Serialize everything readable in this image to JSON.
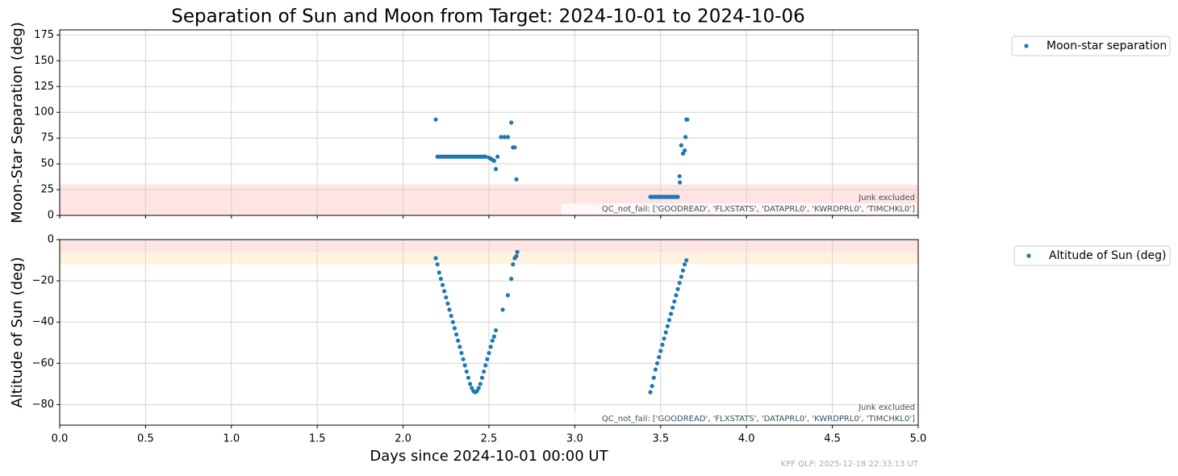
{
  "title": "Separation of Sun and Moon from Target: 2024-10-01 to 2024-10-06",
  "footer": "KPF QLP: 2025-12-18 22:33:13 UT",
  "chart_data": [
    {
      "type": "scatter",
      "ylabel": "Moon-Star Separation (deg)",
      "xlim": [
        0,
        5
      ],
      "ylim": [
        0,
        180
      ],
      "yticks": [
        0,
        25,
        50,
        75,
        100,
        125,
        150,
        175
      ],
      "grid": true,
      "legend": "outside-right",
      "bands": [
        {
          "range": [
            0,
            30
          ],
          "color": "#ffe4e4"
        }
      ],
      "annotations": [
        "Junk excluded",
        "QC_not_fail: ['GOODREAD', 'FLXSTATS', 'DATAPRL0', 'KWRDPRL0', 'TIMCHKL0']"
      ],
      "series": [
        {
          "name": "Moon-star separation",
          "color": "#1f77b4",
          "x": [
            2.19,
            2.2,
            2.21,
            2.22,
            2.23,
            2.24,
            2.25,
            2.26,
            2.27,
            2.28,
            2.29,
            2.3,
            2.31,
            2.32,
            2.33,
            2.34,
            2.35,
            2.36,
            2.37,
            2.38,
            2.39,
            2.4,
            2.41,
            2.42,
            2.43,
            2.44,
            2.45,
            2.46,
            2.47,
            2.48,
            2.5,
            2.51,
            2.52,
            2.53,
            2.54,
            2.55,
            2.57,
            2.59,
            2.61,
            2.63,
            2.64,
            2.65,
            2.66,
            3.44,
            3.45,
            3.46,
            3.47,
            3.48,
            3.49,
            3.5,
            3.51,
            3.52,
            3.53,
            3.54,
            3.55,
            3.56,
            3.57,
            3.58,
            3.59,
            3.6,
            3.61,
            3.612,
            3.62,
            3.63,
            3.64,
            3.645,
            3.65,
            3.655
          ],
          "values": [
            93,
            57,
            57,
            57,
            57,
            57,
            57,
            57,
            57,
            57,
            57,
            57,
            57,
            57,
            57,
            57,
            57,
            57,
            57,
            57,
            57,
            57,
            57,
            57,
            57,
            57,
            57,
            57,
            57,
            57,
            56,
            55,
            54,
            53,
            45,
            57,
            76,
            76,
            76,
            90,
            66,
            66,
            35,
            18,
            18,
            18,
            18,
            18,
            18,
            18,
            18,
            18,
            18,
            18,
            18,
            18,
            18,
            18,
            18,
            18,
            38,
            32,
            68,
            60,
            63,
            76,
            93,
            93
          ]
        }
      ]
    },
    {
      "type": "scatter",
      "ylabel": "Altitude of Sun (deg)",
      "xlabel": "Days since 2024-10-01 00:00 UT",
      "xlim": [
        0,
        5
      ],
      "ylim": [
        -90,
        0
      ],
      "xticks": [
        {
          "value": 0,
          "label": "0.0"
        },
        0.5,
        {
          "value": 1,
          "label": "1.0"
        },
        1.5,
        {
          "value": 2,
          "label": "2.0"
        },
        2.5,
        {
          "value": 3,
          "label": "3.0"
        },
        3.5,
        {
          "value": 4,
          "label": "4.0"
        },
        4.5,
        {
          "value": 5,
          "label": "5.0"
        }
      ],
      "yticks": [
        {
          "value": -80,
          "label": "−80"
        },
        {
          "value": -60,
          "label": "−60"
        },
        {
          "value": -40,
          "label": "−40"
        },
        {
          "value": -20,
          "label": "−20"
        },
        0
      ],
      "grid": true,
      "legend": "outside-right",
      "bands": [
        {
          "range": [
            -6,
            0
          ],
          "color": "#ffe4e4"
        },
        {
          "range": [
            -12,
            -6
          ],
          "color": "#fff3df"
        }
      ],
      "annotations": [
        "Junk excluded",
        "QC_not_fail: ['GOODREAD', 'FLXSTATS', 'DATAPRL0', 'KWRDPRL0', 'TIMCHKL0']"
      ],
      "series": [
        {
          "name": "Altitude of Sun (deg)",
          "color": "#1f77b4",
          "x": [
            2.19,
            2.2,
            2.21,
            2.22,
            2.23,
            2.24,
            2.25,
            2.26,
            2.27,
            2.28,
            2.29,
            2.3,
            2.31,
            2.32,
            2.33,
            2.34,
            2.35,
            2.36,
            2.37,
            2.38,
            2.39,
            2.4,
            2.41,
            2.42,
            2.43,
            2.44,
            2.45,
            2.46,
            2.47,
            2.48,
            2.49,
            2.5,
            2.51,
            2.52,
            2.53,
            2.54,
            2.58,
            2.61,
            2.63,
            2.64,
            2.65,
            2.66,
            2.665,
            3.44,
            3.45,
            3.46,
            3.47,
            3.48,
            3.49,
            3.5,
            3.51,
            3.52,
            3.53,
            3.54,
            3.55,
            3.56,
            3.57,
            3.58,
            3.59,
            3.6,
            3.61,
            3.62,
            3.63,
            3.64,
            3.65
          ],
          "values": [
            -9,
            -12,
            -16,
            -19,
            -22,
            -25,
            -28,
            -31,
            -34,
            -37,
            -40,
            -43,
            -46,
            -49,
            -52,
            -55,
            -58,
            -61,
            -64,
            -67,
            -70,
            -72,
            -73.5,
            -74,
            -73.5,
            -72,
            -70,
            -67,
            -64,
            -61,
            -58,
            -55,
            -52,
            -49,
            -47,
            -44,
            -34,
            -27,
            -19,
            -12,
            -9,
            -8,
            -6,
            -74,
            -71,
            -67,
            -63,
            -60,
            -57,
            -54,
            -51,
            -48,
            -45,
            -42,
            -39,
            -36,
            -33,
            -30,
            -27,
            -24,
            -21,
            -18,
            -15,
            -12,
            -10
          ]
        }
      ]
    }
  ]
}
